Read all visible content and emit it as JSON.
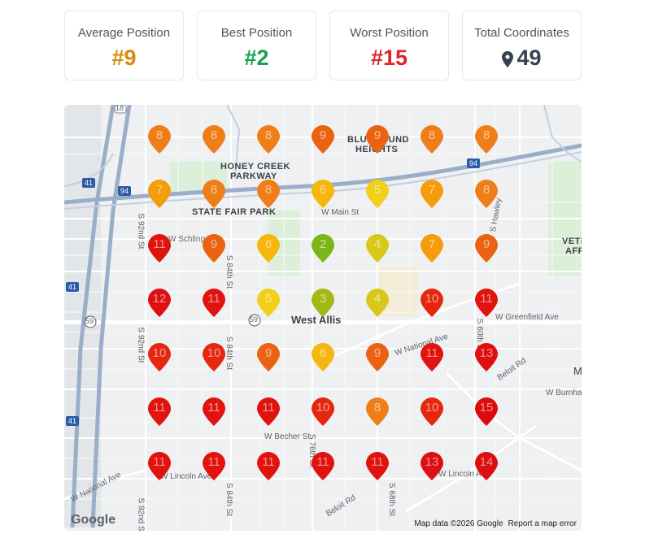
{
  "stats": [
    {
      "label": "Average Position",
      "value": "#9",
      "tone": "orange"
    },
    {
      "label": "Best Position",
      "value": "#2",
      "tone": "green"
    },
    {
      "label": "Worst Position",
      "value": "#15",
      "tone": "red"
    },
    {
      "label": "Total Coordinates",
      "value": "49",
      "tone": "dark",
      "icon": "map-pin-icon"
    }
  ],
  "map": {
    "labels": {
      "city": "West Allis",
      "honey_creek": "HONEY CREEK",
      "parkway": "PARKWAY",
      "state_fair": "STATE FAIR PARK",
      "bluemound": "BLUEMOUND",
      "heights": "HEIGHTS",
      "main_st": "W Main St",
      "schlinger": "W Schlinger",
      "national_ave": "W National Ave",
      "national_ave_sw": "W National Ave",
      "greenfield": "W Greenfield Ave",
      "becher": "W Becher St",
      "lincoln": "W Lincoln Ave",
      "lincoln_e": "W Lincoln Ave",
      "burnham": "W Burnham",
      "beloit": "Beloit Rd",
      "beloit_s": "Beloit Rd",
      "st92": "S 92nd St",
      "st84": "S 84th St",
      "st76": "S 76th St",
      "st60": "S 60th St",
      "st68": "S 68th St",
      "hawley": "S Hawley",
      "hwy94": "94",
      "hwy41": "41",
      "hwy59": "59",
      "hwy18": "18",
      "vete": "VETE",
      "affa": "AFFA",
      "m_edge": "M"
    },
    "google": "Google",
    "attribution": "Map data ©2026 Google",
    "report": "Report a map error",
    "grid": [
      [
        8,
        8,
        8,
        9,
        9,
        8,
        8
      ],
      [
        7,
        8,
        8,
        6,
        5,
        7,
        8
      ],
      [
        11,
        9,
        6,
        2,
        4,
        7,
        9
      ],
      [
        12,
        11,
        5,
        3,
        4,
        10,
        11
      ],
      [
        10,
        10,
        9,
        6,
        9,
        11,
        13
      ],
      [
        11,
        11,
        11,
        10,
        8,
        10,
        15
      ],
      [
        11,
        11,
        11,
        11,
        11,
        13,
        14
      ]
    ],
    "colors": {
      "2": "#7cb518",
      "3": "#a4b814",
      "4": "#d9c81a",
      "5": "#f2d01a",
      "6": "#f5b60e",
      "7": "#f59c0b",
      "8": "#f07e18",
      "9": "#ea6212",
      "10": "#e5270f",
      "11": "#e0130f",
      "12": "#de1010",
      "13": "#dd0f12",
      "14": "#dc0e10",
      "15": "#da0c0c"
    }
  }
}
